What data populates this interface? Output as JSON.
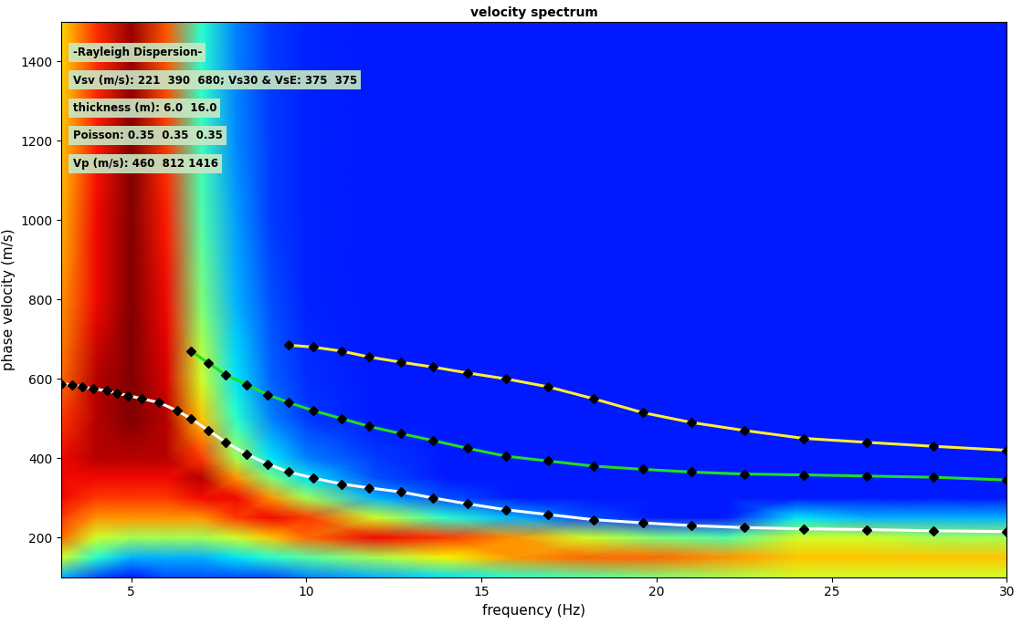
{
  "chart_data": {
    "type": "heatmap",
    "title": "velocity spectrum",
    "x_label": "frequency (Hz)",
    "y_label": "phase velocity (m/s)",
    "annotations": [
      "-Rayleigh Dispersion-",
      "Vsv (m/s): 221  390  680; Vs30 & VsE: 375  375",
      "thickness (m): 6.0  16.0",
      "Poisson: 0.35  0.35  0.35",
      "Vp (m/s): 460  812 1416"
    ],
    "xlim": [
      3,
      30
    ],
    "ylim": [
      100,
      1500
    ],
    "xticks": [
      5,
      10,
      15,
      20,
      25,
      30
    ],
    "yticks": [
      200,
      400,
      600,
      800,
      1000,
      1200,
      1400
    ],
    "grid": false,
    "spectrum": {
      "x": [
        3,
        4,
        5,
        6,
        7,
        8,
        9,
        10,
        12,
        14,
        16,
        18,
        20,
        22,
        24,
        26,
        28,
        30
      ],
      "y": [
        100,
        150,
        200,
        250,
        300,
        350,
        400,
        500,
        600,
        800,
        1000,
        1200,
        1400,
        1500
      ],
      "value_range": [
        0,
        1
      ],
      "values": [
        [
          0.3,
          0.2,
          0.15,
          0.2,
          0.2,
          0.2,
          0.2,
          0.25,
          0.3,
          0.35,
          0.4,
          0.45,
          0.5,
          0.55,
          0.6,
          0.6,
          0.6,
          0.6
        ],
        [
          0.6,
          0.4,
          0.3,
          0.3,
          0.3,
          0.35,
          0.4,
          0.45,
          0.55,
          0.65,
          0.75,
          0.8,
          0.8,
          0.75,
          0.7,
          0.7,
          0.7,
          0.7
        ],
        [
          0.8,
          0.6,
          0.55,
          0.55,
          0.55,
          0.6,
          0.7,
          0.8,
          0.9,
          0.85,
          0.75,
          0.6,
          0.5,
          0.45,
          0.6,
          0.6,
          0.55,
          0.55
        ],
        [
          0.85,
          0.75,
          0.75,
          0.75,
          0.75,
          0.85,
          0.9,
          0.85,
          0.6,
          0.4,
          0.3,
          0.2,
          0.15,
          0.15,
          0.35,
          0.3,
          0.3,
          0.3
        ],
        [
          0.9,
          0.85,
          0.85,
          0.85,
          0.9,
          0.9,
          0.75,
          0.55,
          0.3,
          0.2,
          0.15,
          0.15,
          0.15,
          0.15,
          0.15,
          0.15,
          0.15,
          0.15
        ],
        [
          0.9,
          0.9,
          0.9,
          0.9,
          0.95,
          0.75,
          0.5,
          0.35,
          0.2,
          0.15,
          0.15,
          0.15,
          0.15,
          0.15,
          0.15,
          0.15,
          0.15,
          0.15
        ],
        [
          0.9,
          0.95,
          0.95,
          0.95,
          0.85,
          0.55,
          0.35,
          0.25,
          0.18,
          0.15,
          0.15,
          0.15,
          0.15,
          0.15,
          0.15,
          0.15,
          0.15,
          0.15
        ],
        [
          0.85,
          0.95,
          1.0,
          0.95,
          0.7,
          0.4,
          0.25,
          0.18,
          0.15,
          0.15,
          0.15,
          0.15,
          0.15,
          0.15,
          0.15,
          0.15,
          0.15,
          0.15
        ],
        [
          0.8,
          0.95,
          1.0,
          0.92,
          0.6,
          0.35,
          0.22,
          0.17,
          0.15,
          0.15,
          0.15,
          0.15,
          0.15,
          0.15,
          0.15,
          0.15,
          0.15,
          0.15
        ],
        [
          0.75,
          0.9,
          1.0,
          0.9,
          0.5,
          0.3,
          0.2,
          0.16,
          0.15,
          0.15,
          0.15,
          0.15,
          0.15,
          0.15,
          0.15,
          0.15,
          0.15,
          0.15
        ],
        [
          0.72,
          0.9,
          1.0,
          0.88,
          0.45,
          0.28,
          0.18,
          0.16,
          0.15,
          0.15,
          0.15,
          0.15,
          0.15,
          0.15,
          0.15,
          0.15,
          0.15,
          0.15
        ],
        [
          0.7,
          0.88,
          1.0,
          0.85,
          0.42,
          0.26,
          0.18,
          0.16,
          0.15,
          0.15,
          0.15,
          0.15,
          0.15,
          0.15,
          0.15,
          0.15,
          0.15,
          0.15
        ],
        [
          0.68,
          0.86,
          0.98,
          0.82,
          0.4,
          0.25,
          0.18,
          0.16,
          0.15,
          0.15,
          0.15,
          0.15,
          0.15,
          0.15,
          0.15,
          0.15,
          0.15,
          0.15
        ],
        [
          0.68,
          0.86,
          0.98,
          0.82,
          0.4,
          0.25,
          0.18,
          0.16,
          0.15,
          0.15,
          0.15,
          0.15,
          0.15,
          0.15,
          0.15,
          0.15,
          0.15,
          0.15
        ]
      ]
    },
    "series": [
      {
        "type": "line",
        "color": "#ffffff",
        "marker": "diamond",
        "x": [
          3.0,
          3.3,
          3.6,
          3.9,
          4.3,
          4.6,
          4.9,
          5.3,
          5.8,
          6.3,
          6.7,
          7.2,
          7.7,
          8.3,
          8.9,
          9.5,
          10.2,
          11.0,
          11.8,
          12.7,
          13.6,
          14.6,
          15.7,
          16.9,
          18.2,
          19.6,
          21.0,
          22.5,
          24.2,
          26.0,
          27.9,
          30.0
        ],
        "values": [
          588,
          585,
          580,
          575,
          570,
          563,
          558,
          550,
          540,
          520,
          500,
          470,
          440,
          410,
          385,
          365,
          350,
          335,
          325,
          315,
          300,
          285,
          270,
          258,
          245,
          237,
          230,
          225,
          222,
          220,
          217,
          215
        ]
      },
      {
        "type": "line",
        "color": "#22dd22",
        "marker": "diamond",
        "x": [
          6.7,
          7.2,
          7.7,
          8.3,
          8.9,
          9.5,
          10.2,
          11.0,
          11.8,
          12.7,
          13.6,
          14.6,
          15.7,
          16.9,
          18.2,
          19.6,
          21.0,
          22.5,
          24.2,
          26.0,
          27.9,
          30.0
        ],
        "values": [
          670,
          640,
          610,
          585,
          560,
          540,
          520,
          500,
          480,
          462,
          445,
          425,
          405,
          393,
          380,
          372,
          365,
          360,
          358,
          355,
          352,
          345
        ]
      },
      {
        "type": "line",
        "color": "#ffee33",
        "marker": "diamond",
        "x": [
          9.5,
          10.2,
          11.0,
          11.8,
          12.7,
          13.6,
          14.6,
          15.7,
          16.9,
          18.2,
          19.6,
          21.0,
          22.5,
          24.2,
          26.0,
          27.9,
          30.0
        ],
        "values": [
          685,
          680,
          670,
          655,
          642,
          630,
          615,
          600,
          580,
          550,
          515,
          490,
          470,
          450,
          440,
          430,
          420
        ]
      }
    ]
  }
}
